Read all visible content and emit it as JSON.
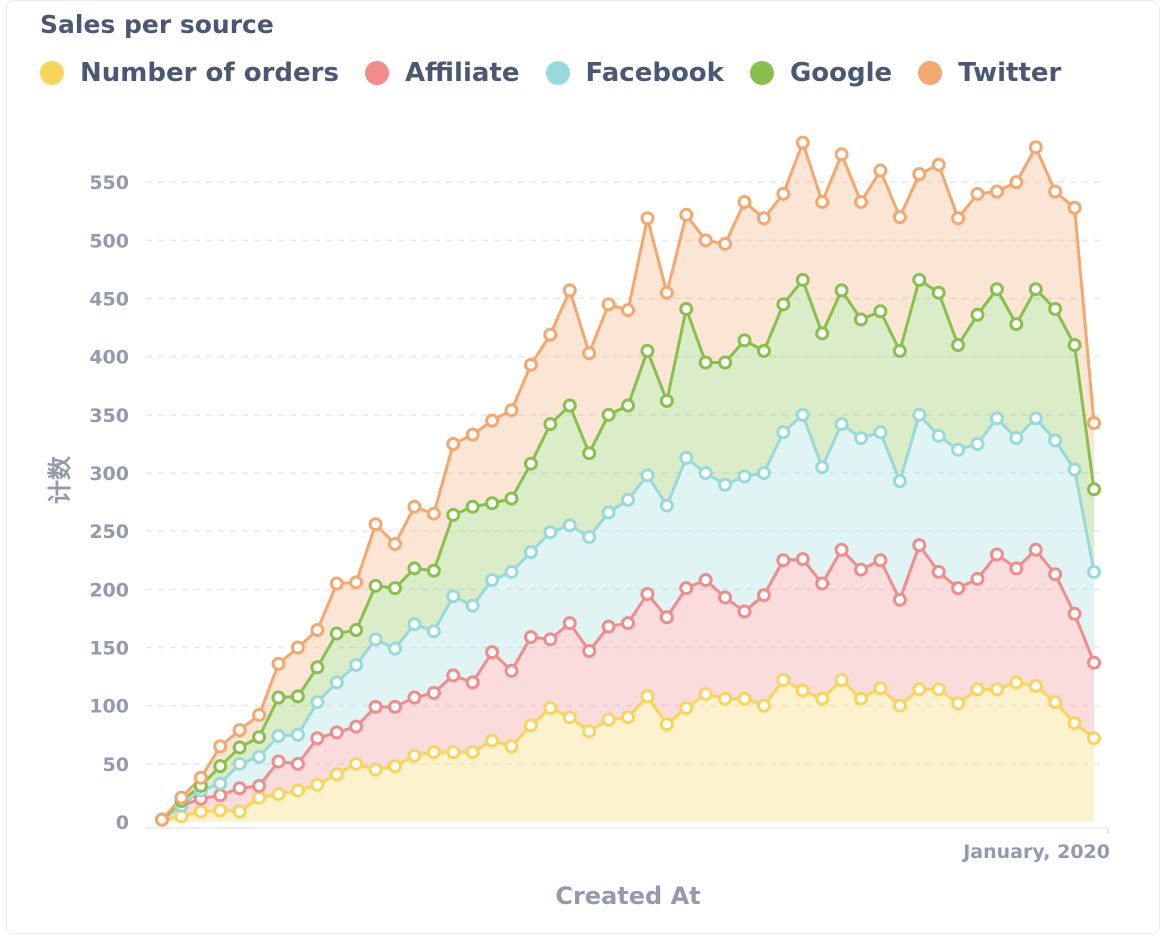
{
  "chart_data": {
    "type": "area",
    "title": "Sales per source",
    "xlabel": "Created At",
    "ylabel": "计数",
    "x_tick_labels": [
      "January, 2020"
    ],
    "y_ticks": [
      0,
      50,
      100,
      150,
      200,
      250,
      300,
      350,
      400,
      450,
      500,
      550
    ],
    "ylim": [
      0,
      600
    ],
    "stacked": true,
    "grid": "horizontal dashed",
    "legend": "top-left",
    "series": [
      {
        "name": "Number of orders",
        "color": "#f9d45c",
        "values": [
          2,
          5,
          9,
          10,
          9,
          21,
          24,
          27,
          32,
          41,
          50,
          45,
          48,
          57,
          60,
          60,
          60,
          70,
          65,
          83,
          98,
          90,
          78,
          88,
          90,
          108,
          84,
          98,
          110,
          106,
          106,
          100,
          122,
          113,
          106,
          122,
          106,
          115,
          100,
          114,
          114,
          102,
          114,
          114,
          120,
          117,
          103,
          85,
          72
        ]
      },
      {
        "name": "Affiliate",
        "color": "#ef8c8c",
        "values": [
          2,
          14,
          20,
          23,
          29,
          31,
          52,
          50,
          72,
          77,
          82,
          99,
          99,
          107,
          111,
          126,
          120,
          146,
          130,
          159,
          157,
          171,
          147,
          168,
          171,
          196,
          176,
          201,
          208,
          193,
          181,
          195,
          225,
          226,
          205,
          234,
          217,
          225,
          191,
          238,
          215,
          201,
          209,
          230,
          218,
          234,
          213,
          179,
          137
        ]
      },
      {
        "name": "Facebook",
        "color": "#98d9d9",
        "values": [
          2,
          14,
          27,
          33,
          50,
          56,
          74,
          75,
          103,
          120,
          135,
          157,
          149,
          170,
          164,
          194,
          186,
          208,
          215,
          232,
          249,
          255,
          245,
          266,
          277,
          298,
          272,
          313,
          300,
          290,
          297,
          300,
          335,
          350,
          305,
          342,
          330,
          335,
          293,
          350,
          332,
          320,
          325,
          347,
          330,
          347,
          328,
          303,
          215
        ]
      },
      {
        "name": "Google",
        "color": "#88bf4d",
        "values": [
          2,
          18,
          31,
          48,
          64,
          73,
          107,
          108,
          133,
          162,
          165,
          203,
          201,
          218,
          216,
          264,
          271,
          274,
          278,
          308,
          342,
          358,
          317,
          350,
          358,
          405,
          362,
          441,
          395,
          395,
          414,
          405,
          445,
          466,
          420,
          457,
          432,
          439,
          405,
          466,
          455,
          410,
          436,
          458,
          428,
          458,
          441,
          410,
          286
        ]
      },
      {
        "name": "Twitter",
        "color": "#f2a86f",
        "values": [
          2,
          21,
          38,
          65,
          79,
          92,
          136,
          150,
          165,
          205,
          206,
          256,
          239,
          271,
          265,
          325,
          333,
          345,
          354,
          393,
          419,
          457,
          403,
          445,
          440,
          519,
          455,
          522,
          500,
          497,
          533,
          519,
          540,
          584,
          533,
          574,
          533,
          560,
          520,
          557,
          565,
          519,
          540,
          542,
          550,
          580,
          542,
          528,
          343
        ]
      }
    ]
  }
}
